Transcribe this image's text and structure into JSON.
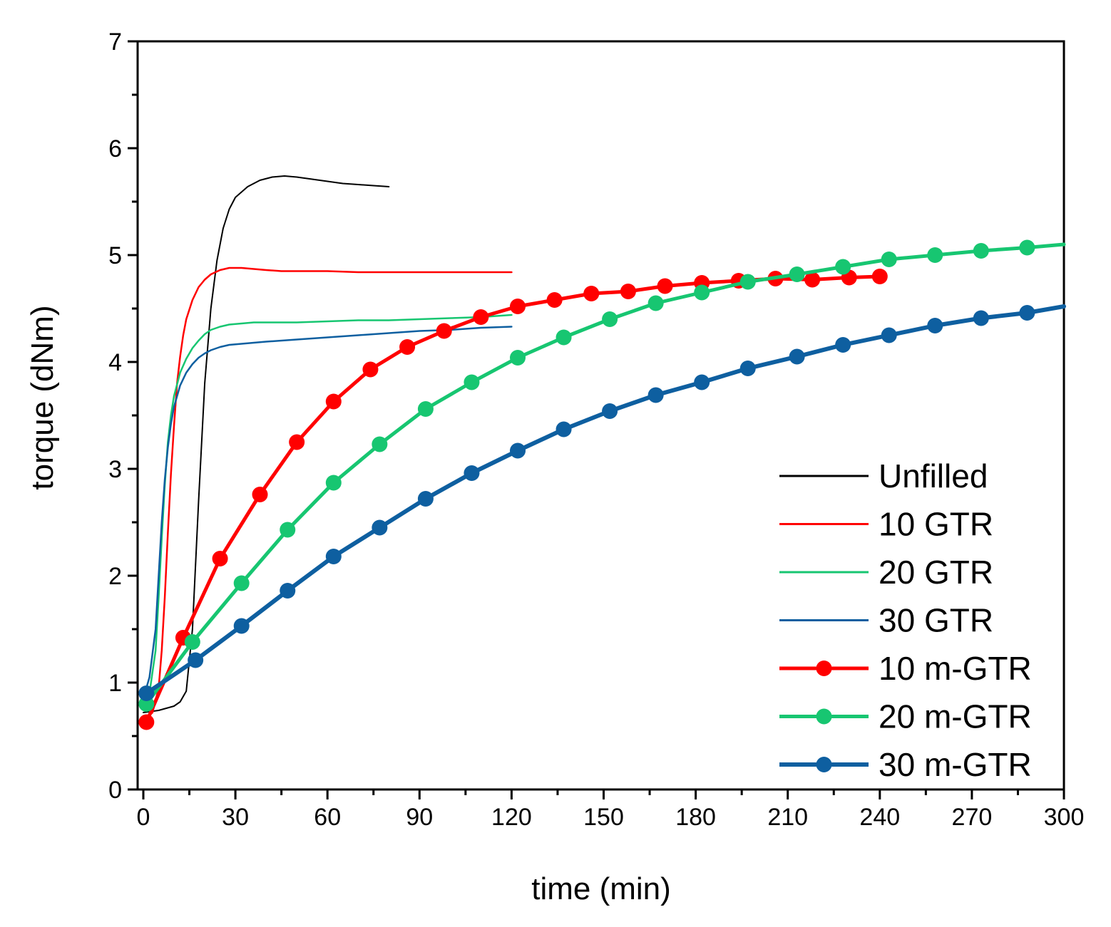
{
  "chart_data": {
    "type": "line",
    "title": "",
    "xlabel": "time (min)",
    "ylabel": "torque (dNm)",
    "xlim": [
      0,
      300
    ],
    "ylim": [
      0,
      7
    ],
    "xticks": [
      0,
      30,
      60,
      90,
      120,
      150,
      180,
      210,
      240,
      270,
      300
    ],
    "yticks": [
      0,
      1,
      2,
      3,
      4,
      5,
      6,
      7
    ],
    "grid": false,
    "legend_position": "bottom-right",
    "series": [
      {
        "name": "Unfilled",
        "color": "#000000",
        "markers": false,
        "line_width": 2,
        "x": [
          0,
          5,
          10,
          12,
          14,
          16,
          18,
          20,
          22,
          24,
          26,
          28,
          30,
          34,
          38,
          42,
          46,
          50,
          55,
          60,
          65,
          70,
          75,
          80
        ],
        "y": [
          0.72,
          0.74,
          0.78,
          0.82,
          0.92,
          1.5,
          2.7,
          3.8,
          4.5,
          4.95,
          5.25,
          5.43,
          5.54,
          5.64,
          5.7,
          5.73,
          5.74,
          5.73,
          5.71,
          5.69,
          5.67,
          5.66,
          5.65,
          5.64
        ]
      },
      {
        "name": "10 GTR",
        "color": "#ff0000",
        "markers": false,
        "line_width": 2.5,
        "x": [
          0,
          3,
          5,
          6,
          7,
          8,
          9,
          10,
          11,
          12,
          13,
          14,
          16,
          18,
          20,
          22,
          25,
          28,
          32,
          36,
          40,
          45,
          50,
          60,
          70,
          80,
          90,
          100,
          110,
          120
        ],
        "y": [
          0.65,
          0.72,
          0.95,
          1.3,
          1.8,
          2.4,
          2.95,
          3.4,
          3.8,
          4.05,
          4.25,
          4.4,
          4.58,
          4.7,
          4.77,
          4.82,
          4.86,
          4.88,
          4.88,
          4.87,
          4.86,
          4.85,
          4.85,
          4.85,
          4.84,
          4.84,
          4.84,
          4.84,
          4.84,
          4.84
        ]
      },
      {
        "name": "20 GTR",
        "color": "#17c671",
        "markers": false,
        "line_width": 2.5,
        "x": [
          0,
          2,
          4,
          5,
          6,
          7,
          8,
          9,
          10,
          12,
          14,
          16,
          18,
          20,
          22,
          25,
          28,
          32,
          36,
          40,
          50,
          60,
          70,
          80,
          90,
          100,
          110,
          120
        ],
        "y": [
          0.78,
          0.9,
          1.3,
          1.8,
          2.35,
          2.85,
          3.25,
          3.5,
          3.68,
          3.9,
          4.03,
          4.13,
          4.2,
          4.26,
          4.3,
          4.33,
          4.35,
          4.36,
          4.37,
          4.37,
          4.37,
          4.38,
          4.39,
          4.39,
          4.4,
          4.41,
          4.42,
          4.44
        ]
      },
      {
        "name": "30 GTR",
        "color": "#0e5fa0",
        "markers": false,
        "line_width": 2.5,
        "x": [
          0,
          2,
          4,
          5,
          6,
          7,
          8,
          9,
          10,
          12,
          14,
          16,
          18,
          20,
          22,
          25,
          28,
          32,
          36,
          40,
          50,
          60,
          70,
          80,
          90,
          100,
          110,
          120
        ],
        "y": [
          0.85,
          1.05,
          1.5,
          2.0,
          2.5,
          2.9,
          3.2,
          3.42,
          3.58,
          3.78,
          3.9,
          3.98,
          4.04,
          4.08,
          4.11,
          4.14,
          4.16,
          4.17,
          4.18,
          4.19,
          4.21,
          4.23,
          4.25,
          4.27,
          4.29,
          4.3,
          4.32,
          4.33
        ]
      },
      {
        "name": "10 m-GTR",
        "color": "#ff0000",
        "markers": true,
        "line_width": 5,
        "x": [
          1,
          13,
          25,
          38,
          50,
          62,
          74,
          86,
          98,
          110,
          122,
          134,
          146,
          158,
          170,
          182,
          194,
          206,
          218,
          230,
          240
        ],
        "y": [
          0.63,
          1.42,
          2.16,
          2.76,
          3.25,
          3.63,
          3.93,
          4.14,
          4.29,
          4.42,
          4.52,
          4.58,
          4.64,
          4.66,
          4.71,
          4.74,
          4.76,
          4.78,
          4.77,
          4.79,
          4.8
        ]
      },
      {
        "name": "20 m-GTR",
        "color": "#17c671",
        "markers": true,
        "line_width": 5,
        "x": [
          1,
          16,
          32,
          47,
          62,
          77,
          92,
          107,
          122,
          137,
          152,
          167,
          182,
          197,
          213,
          228,
          243,
          258,
          273,
          288,
          300
        ],
        "y": [
          0.8,
          1.38,
          1.93,
          2.43,
          2.87,
          3.23,
          3.56,
          3.81,
          4.04,
          4.23,
          4.4,
          4.55,
          4.65,
          4.75,
          4.82,
          4.89,
          4.96,
          5.0,
          5.04,
          5.07,
          5.1
        ]
      },
      {
        "name": "30 m-GTR",
        "color": "#0e5fa0",
        "markers": true,
        "line_width": 6,
        "x": [
          1,
          17,
          32,
          47,
          62,
          77,
          92,
          107,
          122,
          137,
          152,
          167,
          182,
          197,
          213,
          228,
          243,
          258,
          273,
          288,
          300
        ],
        "y": [
          0.9,
          1.21,
          1.53,
          1.86,
          2.18,
          2.45,
          2.72,
          2.96,
          3.17,
          3.37,
          3.54,
          3.69,
          3.81,
          3.94,
          4.05,
          4.16,
          4.25,
          4.34,
          4.41,
          4.46,
          4.52
        ]
      }
    ]
  }
}
